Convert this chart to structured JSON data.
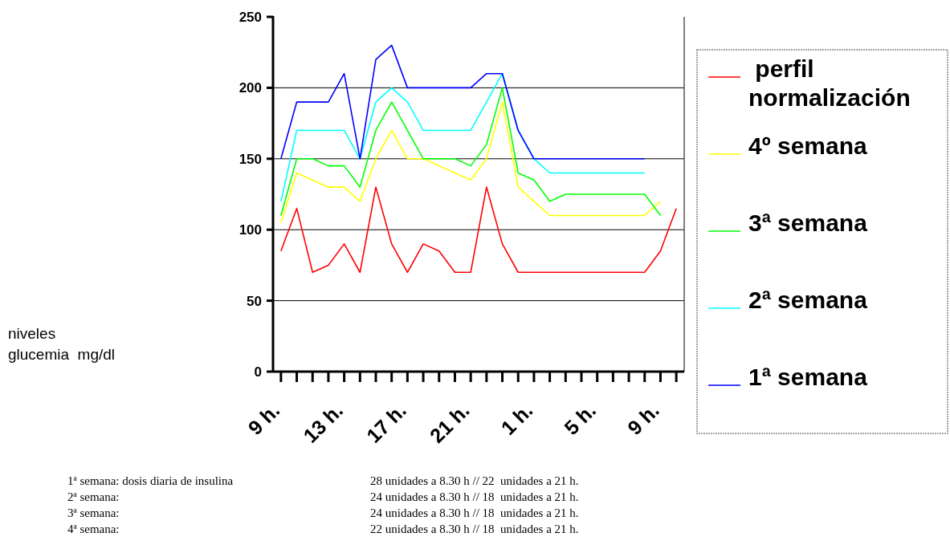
{
  "chart_data": {
    "type": "line",
    "categories": [
      "9 h.",
      null,
      null,
      null,
      "13 h.",
      null,
      null,
      null,
      "17 h.",
      null,
      null,
      null,
      "21 h.",
      null,
      null,
      null,
      "1 h.",
      null,
      null,
      null,
      "5 h.",
      null,
      null,
      null,
      "9 h.",
      null
    ],
    "series": [
      {
        "name": " perfil normalización",
        "color": "#ff0000",
        "values": [
          85,
          115,
          70,
          75,
          90,
          70,
          130,
          90,
          70,
          90,
          85,
          70,
          70,
          130,
          90,
          70,
          70,
          70,
          70,
          70,
          70,
          70,
          70,
          70,
          85,
          115
        ]
      },
      {
        "name": "4º semana",
        "color": "#ffff00",
        "values": [
          105,
          140,
          135,
          130,
          130,
          120,
          150,
          170,
          150,
          150,
          145,
          140,
          135,
          150,
          190,
          130,
          120,
          110,
          110,
          110,
          110,
          110,
          110,
          110,
          120,
          null
        ]
      },
      {
        "name": "3ª semana",
        "color": "#00ff00",
        "values": [
          110,
          150,
          150,
          145,
          145,
          130,
          170,
          190,
          170,
          150,
          150,
          150,
          145,
          160,
          200,
          140,
          135,
          120,
          125,
          125,
          125,
          125,
          125,
          125,
          110,
          null
        ]
      },
      {
        "name": "2ª semana",
        "color": "#00ffff",
        "values": [
          120,
          170,
          170,
          170,
          170,
          150,
          190,
          200,
          190,
          170,
          170,
          170,
          170,
          190,
          210,
          170,
          150,
          140,
          140,
          140,
          140,
          140,
          140,
          140,
          null,
          null
        ]
      },
      {
        "name": "1ª semana",
        "color": "#0000ff",
        "values": [
          150,
          190,
          190,
          190,
          210,
          150,
          220,
          230,
          200,
          200,
          200,
          200,
          200,
          210,
          210,
          170,
          150,
          150,
          150,
          150,
          150,
          150,
          150,
          150,
          null,
          null
        ]
      }
    ],
    "ylim": [
      0,
      250
    ],
    "yticks": [
      0,
      50,
      100,
      150,
      200,
      250
    ],
    "grid": "y",
    "legend": "right",
    "marker": "none",
    "line_style": "solid",
    "annotations": [
      "niveles glucemia  mg/dl",
      "1ª semana: dosis diaria de insulina",
      "28 unidades a 8.30 h // 22  unidades a 21 h.",
      "2ª semana:",
      "24 unidades a 8.30 h // 18  unidades a 21 h.",
      "3ª semana:",
      "24 unidades a 8.30 h // 18  unidades a 21 h.",
      "4ª semana:",
      "22 unidades a 8.30 h // 18  unidades a 21 h."
    ]
  }
}
